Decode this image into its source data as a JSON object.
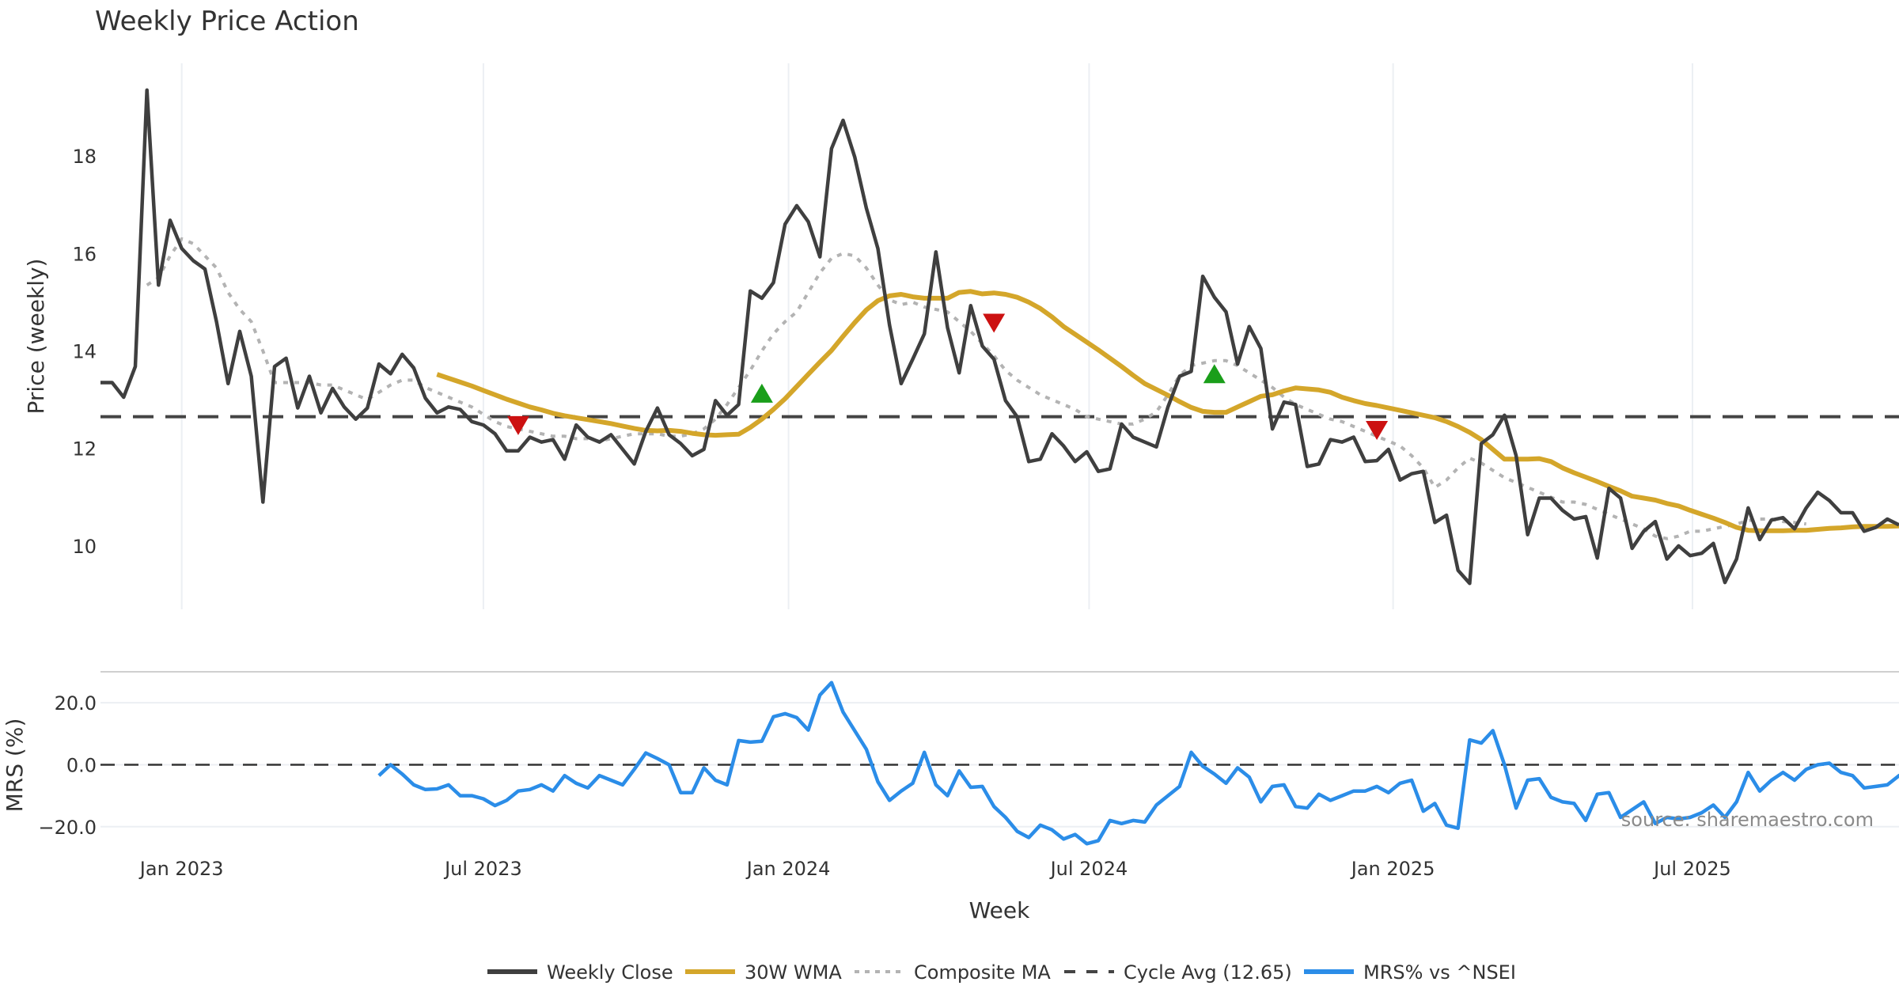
{
  "chart_data": {
    "type": "line",
    "title": "Weekly Price Action",
    "xlabel": "Week",
    "source_note": "source: sharemaestro.com",
    "x_tick_labels": [
      "Jan 2023",
      "Jul 2023",
      "Jan 2024",
      "Jul 2024",
      "Jan 2025",
      "Jul 2025"
    ],
    "x_tick_weeks": [
      7,
      33,
      59.3,
      85.2,
      111.4,
      137.2
    ],
    "x_week_range": [
      0,
      155
    ],
    "price_panel": {
      "ylabel": "Price (weekly)",
      "ylim": [
        8.7,
        19.9
      ],
      "y_ticks": [
        10,
        12,
        14,
        16,
        18
      ],
      "cycle_avg": 12.65,
      "weekly_close": [
        13.35,
        13.35,
        13.05,
        13.68,
        19.35,
        15.35,
        16.68,
        16.1,
        15.85,
        15.68,
        14.6,
        13.33,
        14.4,
        13.48,
        10.9,
        13.68,
        13.85,
        12.83,
        13.48,
        12.73,
        13.23,
        12.85,
        12.6,
        12.83,
        13.73,
        13.53,
        13.93,
        13.65,
        13.03,
        12.73,
        12.85,
        12.8,
        12.55,
        12.48,
        12.3,
        11.95,
        11.95,
        12.23,
        12.13,
        12.18,
        11.78,
        12.48,
        12.23,
        12.13,
        12.28,
        11.98,
        11.68,
        12.35,
        12.83,
        12.28,
        12.1,
        11.85,
        11.98,
        12.98,
        12.68,
        12.9,
        15.23,
        15.08,
        15.4,
        16.6,
        16.98,
        16.65,
        15.93,
        18.15,
        18.73,
        17.98,
        16.93,
        16.1,
        14.53,
        13.33,
        13.83,
        14.35,
        16.03,
        14.48,
        13.55,
        14.93,
        14.1,
        13.83,
        12.98,
        12.65,
        11.73,
        11.78,
        12.3,
        12.05,
        11.73,
        11.93,
        11.53,
        11.58,
        12.5,
        12.23,
        12.13,
        12.03,
        12.85,
        13.48,
        13.58,
        15.53,
        15.1,
        14.8,
        13.73,
        14.5,
        14.05,
        12.4,
        12.95,
        12.9,
        11.63,
        11.68,
        12.18,
        12.13,
        12.23,
        11.73,
        11.75,
        11.98,
        11.35,
        11.48,
        11.53,
        10.48,
        10.63,
        9.5,
        9.23,
        12.1,
        12.28,
        12.68,
        11.85,
        10.23,
        10.98,
        10.98,
        10.73,
        10.55,
        10.6,
        9.75,
        11.18,
        10.98,
        9.95,
        10.3,
        10.5,
        9.73,
        10.0,
        9.8,
        9.85,
        10.05,
        9.25,
        9.73,
        10.78,
        10.13,
        10.53,
        10.58,
        10.35,
        10.78,
        11.1,
        10.93,
        10.68,
        10.68,
        10.3,
        10.38,
        10.55,
        10.43
      ],
      "wma_30w_start_week": 29,
      "wma_30w": [
        13.52,
        13.44,
        13.36,
        13.28,
        13.19,
        13.1,
        13.01,
        12.93,
        12.85,
        12.79,
        12.72,
        12.67,
        12.63,
        12.59,
        12.55,
        12.51,
        12.46,
        12.41,
        12.37,
        12.36,
        12.37,
        12.35,
        12.31,
        12.28,
        12.27,
        12.28,
        12.29,
        12.43,
        12.6,
        12.8,
        13.02,
        13.27,
        13.52,
        13.77,
        14.01,
        14.3,
        14.58,
        14.84,
        15.03,
        15.13,
        15.16,
        15.11,
        15.08,
        15.08,
        15.08,
        15.2,
        15.22,
        15.17,
        15.19,
        15.16,
        15.1,
        15.0,
        14.87,
        14.7,
        14.5,
        14.34,
        14.18,
        14.02,
        13.85,
        13.68,
        13.5,
        13.33,
        13.21,
        13.09,
        12.96,
        12.84,
        12.76,
        12.74,
        12.74,
        12.85,
        12.96,
        13.07,
        13.1,
        13.18,
        13.24,
        13.22,
        13.2,
        13.15,
        13.05,
        12.98,
        12.92,
        12.88,
        12.83,
        12.78,
        12.73,
        12.68,
        12.63,
        12.55,
        12.45,
        12.33,
        12.18,
        11.98,
        11.78,
        11.78,
        11.78,
        11.79,
        11.73,
        11.6,
        11.5,
        11.41,
        11.32,
        11.22,
        11.13,
        11.02,
        10.98,
        10.94,
        10.87,
        10.82,
        10.73,
        10.65,
        10.57,
        10.48,
        10.38,
        10.32,
        10.31,
        10.31,
        10.31,
        10.32,
        10.32,
        10.34,
        10.36,
        10.37,
        10.39,
        10.4,
        10.4,
        10.4,
        10.41,
        10.42,
        10.42
      ],
      "composite_ma_start_week": 4,
      "composite_ma": [
        15.35,
        15.5,
        15.95,
        16.3,
        16.2,
        15.95,
        15.7,
        15.2,
        14.85,
        14.6,
        14.0,
        13.35,
        13.35,
        13.35,
        13.35,
        13.3,
        13.3,
        13.2,
        13.1,
        13.0,
        13.15,
        13.3,
        13.4,
        13.4,
        13.25,
        13.15,
        13.05,
        12.95,
        12.85,
        12.7,
        12.55,
        12.45,
        12.4,
        12.35,
        12.3,
        12.25,
        12.25,
        12.2,
        12.2,
        12.15,
        12.2,
        12.25,
        12.3,
        12.3,
        12.3,
        12.25,
        12.25,
        12.3,
        12.4,
        12.6,
        12.9,
        13.25,
        13.6,
        14.0,
        14.35,
        14.6,
        14.8,
        15.2,
        15.6,
        15.9,
        16.0,
        15.95,
        15.7,
        15.35,
        15.05,
        14.95,
        15.0,
        14.9,
        14.85,
        14.8,
        14.6,
        14.4,
        14.15,
        13.9,
        13.6,
        13.4,
        13.25,
        13.1,
        13.0,
        12.9,
        12.8,
        12.65,
        12.6,
        12.55,
        12.5,
        12.5,
        12.6,
        12.75,
        13.1,
        13.5,
        13.7,
        13.75,
        13.8,
        13.8,
        13.7,
        13.55,
        13.4,
        13.25,
        13.05,
        12.9,
        12.8,
        12.7,
        12.6,
        12.55,
        12.45,
        12.35,
        12.25,
        12.15,
        12.05,
        11.85,
        11.6,
        11.2,
        11.35,
        11.6,
        11.8,
        11.7,
        11.55,
        11.4,
        11.3,
        11.2,
        11.1,
        11.0,
        10.9,
        10.9,
        10.85,
        10.75,
        10.65,
        10.55,
        10.45,
        10.35,
        10.2,
        10.15,
        10.2,
        10.3,
        10.3,
        10.35,
        10.4,
        10.45,
        10.52,
        10.55,
        10.55,
        10.5,
        10.48,
        10.45
      ],
      "buy_signals": [
        {
          "week": 57,
          "value": 13.1
        },
        {
          "week": 96,
          "value": 13.5
        }
      ],
      "sell_signals": [
        {
          "week": 36,
          "value": 12.5
        },
        {
          "week": 77,
          "value": 14.6
        },
        {
          "week": 110,
          "value": 12.4
        }
      ]
    },
    "mrs_panel": {
      "ylabel": "MRS (%)",
      "ylim": [
        -29,
        30
      ],
      "y_ticks": [
        -20.0,
        0.0,
        20.0
      ],
      "y_tick_labels": [
        "−20.0",
        "0.0",
        "20.0"
      ],
      "zero_line": 0.0,
      "start_week": 24,
      "mrs": [
        -3.5,
        0,
        -3,
        -6.5,
        -8,
        -7.8,
        -6.5,
        -10,
        -10,
        -11,
        -13.2,
        -11.5,
        -8.5,
        -8,
        -6.5,
        -8.5,
        -3.5,
        -6,
        -7.5,
        -3.5,
        -5,
        -6.5,
        -1.5,
        3.8,
        2,
        0,
        -9,
        -9,
        -1,
        -5,
        -6.5,
        7.8,
        7.3,
        7.6,
        15.5,
        16.5,
        15.2,
        11.2,
        22.5,
        26.5,
        17,
        11,
        5,
        -5.5,
        -11.5,
        -8.5,
        -6,
        4,
        -6.5,
        -10,
        -2,
        -7.3,
        -7,
        -13.5,
        -17,
        -21.5,
        -23.5,
        -19.5,
        -21,
        -24,
        -22.5,
        -25.5,
        -24.5,
        -18,
        -19,
        -18,
        -18.5,
        -13,
        -10,
        -7,
        4,
        -0.5,
        -3,
        -6,
        -1,
        -4,
        -12,
        -7,
        -6.5,
        -13.5,
        -14,
        -9.5,
        -11.5,
        -10,
        -8.5,
        -8.5,
        -7,
        -9,
        -6,
        -5,
        -15,
        -12.5,
        -19.5,
        -20.5,
        8,
        7,
        11,
        0,
        -14,
        -5,
        -4.5,
        -10.5,
        -12,
        -12.5,
        -18,
        -9.5,
        -9,
        -17,
        -14.5,
        -12,
        -19,
        -17,
        -17.5,
        -17,
        -15.5,
        -13,
        -17,
        -12,
        -2.5,
        -8.5,
        -5,
        -2.5,
        -5,
        -1.5,
        0,
        0.5,
        -2.5,
        -3.5,
        -7.5,
        -7,
        -6.5,
        -3.5,
        -5
      ]
    },
    "legend": {
      "position": "bottom-center",
      "entries": [
        {
          "label": "Weekly Close",
          "color": "#3f3f3f",
          "style": "solid"
        },
        {
          "label": "30W WMA",
          "color": "#d4a62a",
          "style": "solid"
        },
        {
          "label": "Composite MA",
          "color": "#b3b3b3",
          "style": "dotted"
        },
        {
          "label": "Cycle Avg (12.65)",
          "color": "#444444",
          "style": "dashed"
        },
        {
          "label": "MRS% vs ^NSEI",
          "color": "#2b8de8",
          "style": "solid"
        }
      ]
    },
    "colors": {
      "close": "#3f3f3f",
      "wma": "#d4a62a",
      "composite": "#b3b3b3",
      "cycle": "#444444",
      "mrs": "#2b8de8",
      "buy": "#1a9e1a",
      "sell": "#cc1111",
      "grid": "#eceff3"
    }
  }
}
